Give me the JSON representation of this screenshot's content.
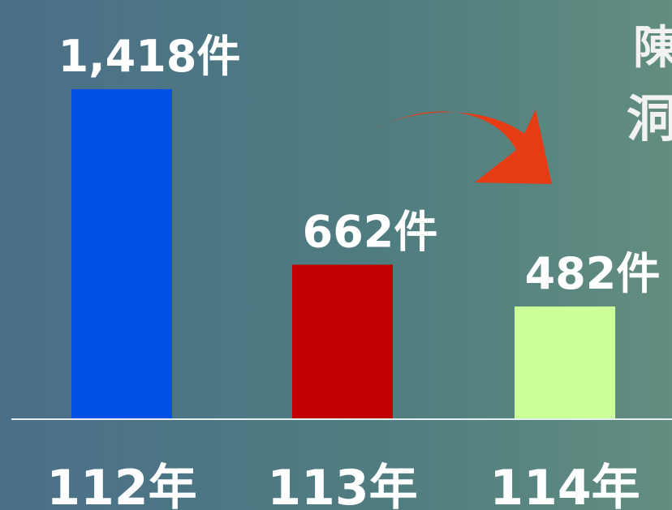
{
  "chart_data": {
    "type": "bar",
    "categories": [
      "112年",
      "113年",
      "114年"
    ],
    "values": [
      1418,
      662,
      482
    ],
    "value_labels": [
      "1,418件",
      "662件",
      "482件"
    ],
    "colors": [
      "#0050e6",
      "#c00000",
      "#ccff99"
    ],
    "annotations": [
      "陳",
      "洞"
    ]
  }
}
